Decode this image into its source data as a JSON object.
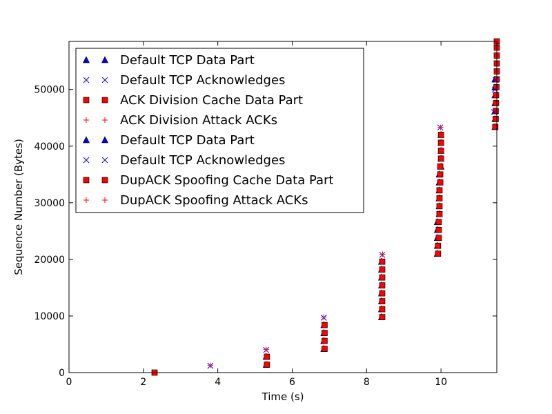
{
  "chart_data": {
    "type": "scatter",
    "xlabel": "Time (s)",
    "ylabel": "Sequence Number (Bytes)",
    "xlim": [
      0,
      11.5
    ],
    "ylim": [
      0,
      58500
    ],
    "xticks": [
      0,
      2,
      4,
      6,
      8,
      10
    ],
    "yticks": [
      0,
      10000,
      20000,
      30000,
      40000,
      50000
    ],
    "grid": false,
    "legend_position": "upper-left",
    "series": [
      {
        "name": "Default TCP Data Part",
        "marker": "triangle",
        "color": "#0000ff",
        "points": [
          [
            5.3,
            1400
          ],
          [
            5.3,
            2800
          ],
          [
            6.85,
            4200
          ],
          [
            6.85,
            5600
          ],
          [
            6.85,
            7000
          ],
          [
            6.85,
            8400
          ],
          [
            8.4,
            9800
          ],
          [
            8.4,
            11200
          ],
          [
            8.4,
            12600
          ],
          [
            8.4,
            14000
          ],
          [
            8.4,
            15400
          ],
          [
            8.4,
            16800
          ],
          [
            8.4,
            18200
          ],
          [
            8.4,
            19600
          ],
          [
            9.9,
            21000
          ],
          [
            9.9,
            22400
          ],
          [
            9.9,
            23800
          ],
          [
            9.9,
            25200
          ],
          [
            9.9,
            26600
          ],
          [
            9.95,
            28000
          ],
          [
            9.95,
            29400
          ],
          [
            9.95,
            30800
          ],
          [
            9.95,
            32200
          ],
          [
            9.95,
            33600
          ],
          [
            9.95,
            35000
          ],
          [
            10.0,
            36400
          ],
          [
            10.0,
            37800
          ],
          [
            10.0,
            39200
          ],
          [
            10.0,
            40600
          ],
          [
            10.0,
            42000
          ],
          [
            11.45,
            43400
          ],
          [
            11.45,
            44800
          ],
          [
            11.45,
            46200
          ],
          [
            11.45,
            47600
          ],
          [
            11.45,
            49000
          ],
          [
            11.45,
            50400
          ],
          [
            11.45,
            51800
          ]
        ]
      },
      {
        "name": "Default TCP Acknowledges",
        "marker": "x",
        "color": "#0000ff",
        "points": [
          [
            3.8,
            1200
          ],
          [
            5.3,
            4000
          ],
          [
            6.85,
            9700
          ],
          [
            8.42,
            20800
          ],
          [
            9.98,
            43300
          ],
          [
            11.43,
            46000
          ],
          [
            11.45,
            50000
          ],
          [
            11.47,
            51700
          ]
        ]
      },
      {
        "name": "ACK Division Cache Data Part",
        "marker": "square",
        "color": "#ff0000",
        "points": [
          [
            2.3,
            0
          ],
          [
            5.32,
            1400
          ],
          [
            5.32,
            2800
          ],
          [
            6.87,
            4200
          ],
          [
            6.87,
            5600
          ],
          [
            6.87,
            7000
          ],
          [
            6.87,
            8400
          ],
          [
            8.42,
            9800
          ],
          [
            8.42,
            11200
          ],
          [
            8.42,
            12600
          ],
          [
            8.42,
            14000
          ],
          [
            8.42,
            15400
          ],
          [
            8.42,
            16800
          ],
          [
            8.42,
            18200
          ],
          [
            8.42,
            19600
          ],
          [
            9.92,
            21000
          ],
          [
            9.92,
            22400
          ],
          [
            9.94,
            23800
          ],
          [
            9.94,
            25200
          ],
          [
            9.94,
            26600
          ],
          [
            9.96,
            28000
          ],
          [
            9.96,
            29400
          ],
          [
            9.96,
            30800
          ],
          [
            9.96,
            32200
          ],
          [
            9.98,
            33600
          ],
          [
            9.98,
            35000
          ],
          [
            9.98,
            36400
          ],
          [
            10.0,
            37800
          ],
          [
            10.0,
            39200
          ],
          [
            10.0,
            40600
          ],
          [
            10.0,
            42000
          ],
          [
            11.46,
            43400
          ],
          [
            11.47,
            44800
          ],
          [
            11.47,
            46200
          ],
          [
            11.48,
            47600
          ],
          [
            11.48,
            49000
          ],
          [
            11.49,
            50400
          ],
          [
            11.5,
            51800
          ],
          [
            11.5,
            53200
          ],
          [
            11.5,
            54600
          ],
          [
            11.5,
            56000
          ],
          [
            11.5,
            57400
          ],
          [
            11.5,
            58500
          ]
        ]
      },
      {
        "name": "ACK Division Attack ACKs",
        "marker": "plus",
        "color": "#ff0000",
        "points": [
          [
            3.8,
            1300
          ],
          [
            5.3,
            4100
          ],
          [
            6.85,
            9800
          ],
          [
            8.43,
            20900
          ],
          [
            9.99,
            43300
          ]
        ]
      },
      {
        "name": "Default TCP Data Part",
        "marker": "triangle",
        "color": "#0000ff",
        "points": []
      },
      {
        "name": "Default TCP Acknowledges",
        "marker": "x",
        "color": "#0000ff",
        "points": []
      },
      {
        "name": "DupACK Spoofing Cache Data Part",
        "marker": "square",
        "color": "#ff0000",
        "points": []
      },
      {
        "name": "DupACK Spoofing Attack ACKs",
        "marker": "plus",
        "color": "#ff0000",
        "points": []
      }
    ]
  }
}
